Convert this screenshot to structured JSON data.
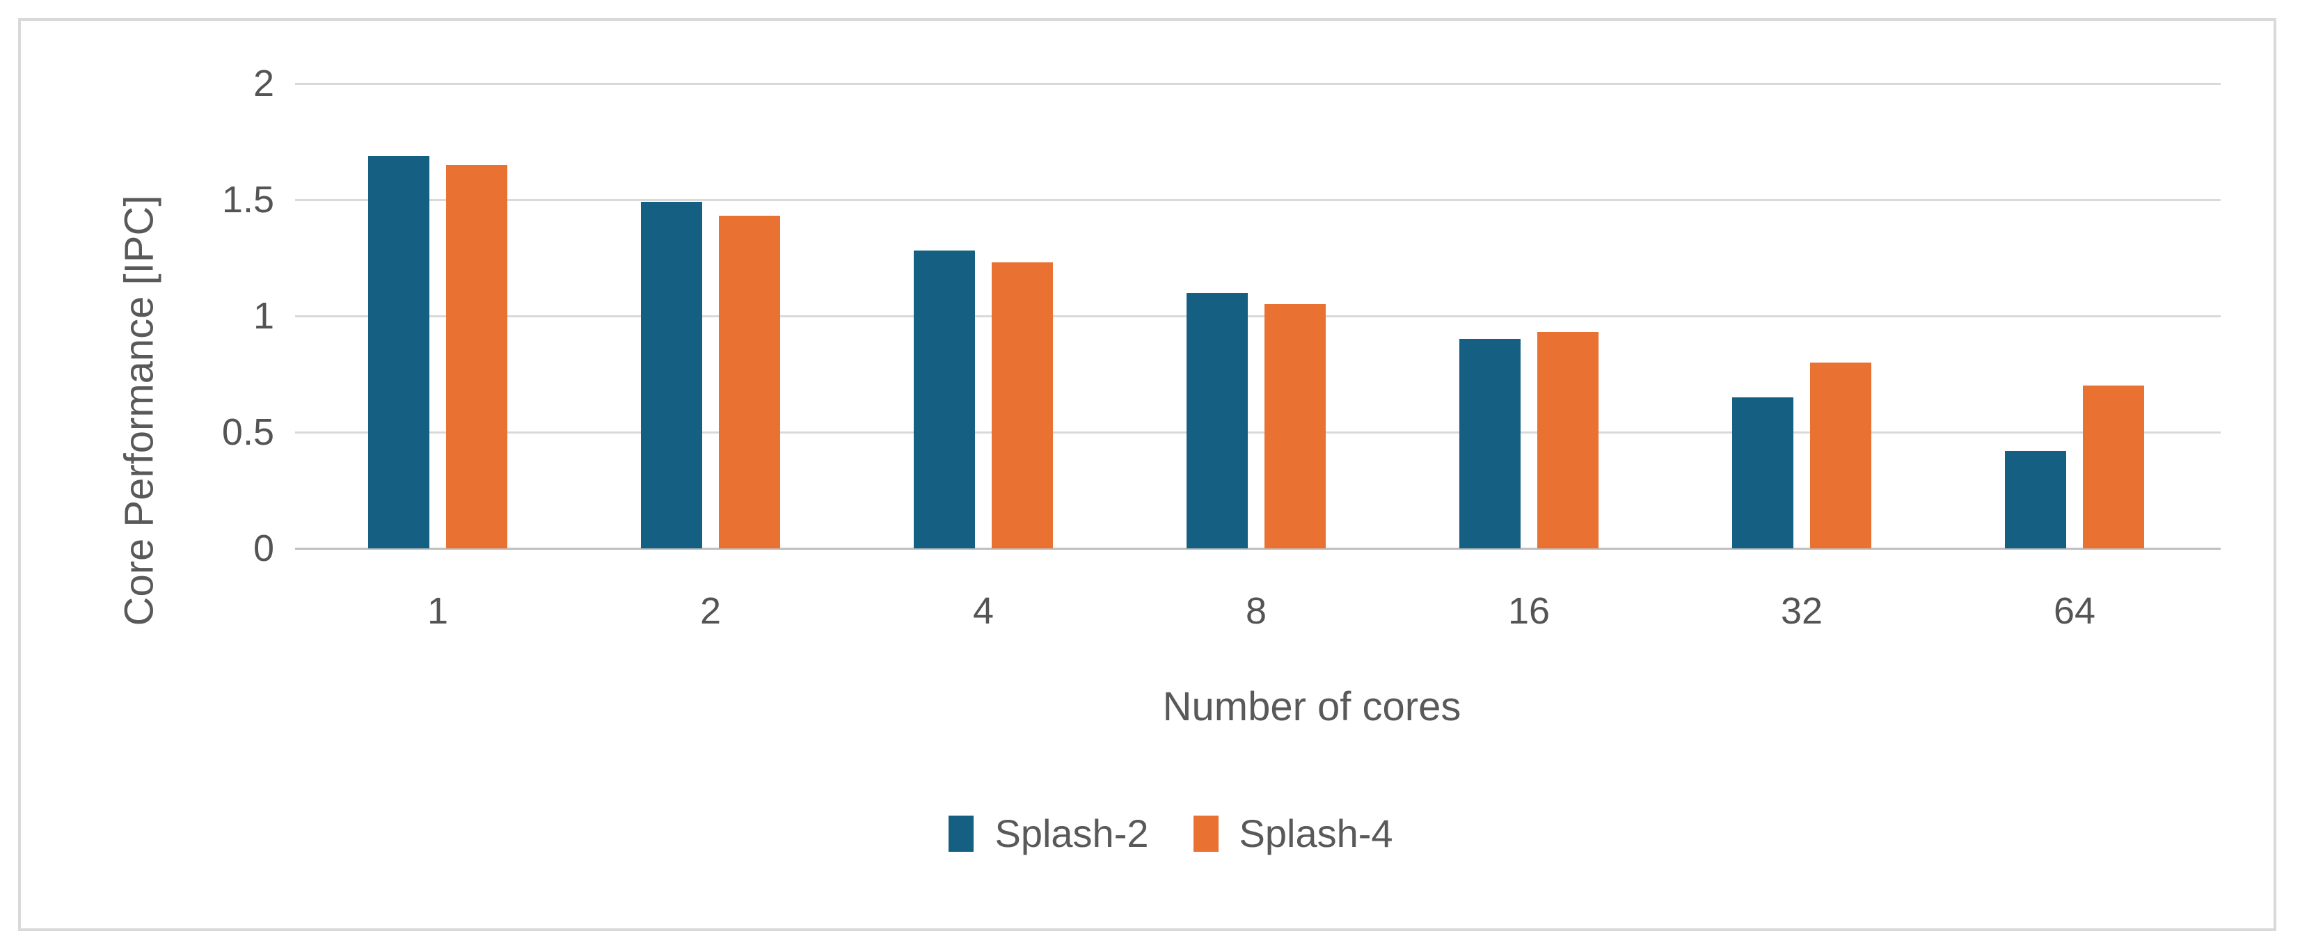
{
  "chart_data": {
    "type": "bar",
    "title": "",
    "categories": [
      "1",
      "2",
      "4",
      "8",
      "16",
      "32",
      "64"
    ],
    "series": [
      {
        "name": "Splash-2",
        "color": "#156082",
        "values": [
          1.69,
          1.49,
          1.28,
          1.1,
          0.9,
          0.65,
          0.42
        ]
      },
      {
        "name": "Splash-4",
        "color": "#E97132",
        "values": [
          1.65,
          1.43,
          1.23,
          1.05,
          0.93,
          0.8,
          0.7
        ]
      }
    ],
    "xlabel": "Number of cores",
    "ylabel": "Core Performance [IPC]",
    "ylim": [
      0,
      2
    ],
    "yticks": [
      0,
      0.5,
      1,
      1.5,
      2
    ],
    "ytick_labels": [
      "0",
      "0.5",
      "1",
      "1.5",
      "2"
    ],
    "grid": true,
    "legend_position": "bottom-center"
  },
  "colors": {
    "background": "#ffffff",
    "frame_border": "#d9d9d9",
    "gridline": "#d9d9d9",
    "axis_line": "#bfbfbf",
    "tick_text": "#545454",
    "title_text": "#595959"
  }
}
